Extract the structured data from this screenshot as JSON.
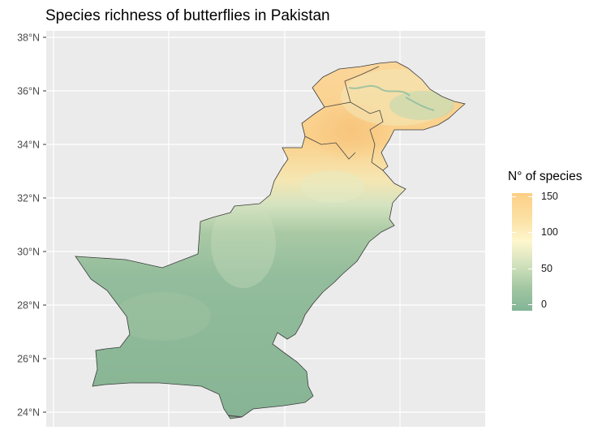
{
  "title": "Species richness of butterflies in Pakistan",
  "y_axis": {
    "ticks": [
      "38°N",
      "36°N",
      "34°N",
      "32°N",
      "30°N",
      "28°N",
      "26°N",
      "24°N"
    ]
  },
  "legend": {
    "title": "N° of species",
    "labels": [
      "150",
      "100",
      "50",
      "0"
    ],
    "values": [
      150,
      100,
      50,
      0
    ],
    "range": [
      0,
      155
    ],
    "colors": [
      "#82b596",
      "#9fc5a0",
      "#cfe0bc",
      "#fef6cd",
      "#fbe1a4",
      "#fdcf86"
    ]
  },
  "map_colors": {
    "panel": "#ebebeb",
    "grid": "#ffffff",
    "low": "#8ab898",
    "mid": "#a9c9a4",
    "high": "#fdd28c",
    "peak": "#f9c680",
    "border": "#333333"
  }
}
